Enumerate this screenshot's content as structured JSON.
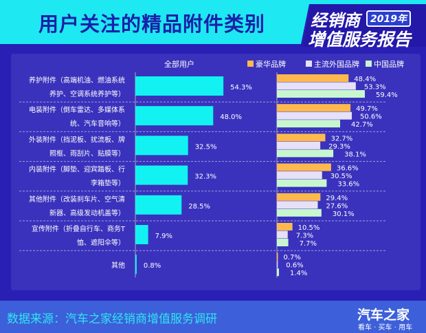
{
  "header": {
    "title": "用户关注的精品附件类别",
    "badge_line1": "经销商",
    "badge_year": "2019年",
    "badge_line2": "增值服务报告"
  },
  "footer": {
    "source": "数据来源：汽车之家经销商增值服务调研",
    "logo": "汽车之家",
    "logo_tagline": "看车 · 买车 · 用车"
  },
  "colors": {
    "all_users": "#12f2f2",
    "luxury": "#ffb84d",
    "foreign": "#e6e0f8",
    "chinese": "#c8f7cf",
    "background": "#2a1fb4",
    "header": "#1ee8f2"
  },
  "chart_data": {
    "type": "bar",
    "orientation": "horizontal",
    "categories": [
      [
        "养护附件（高端机油、燃油系统",
        "养护、空调系统养护等）"
      ],
      [
        "电装附件（倒车雷达、多媒体系",
        "统、汽车音响等）"
      ],
      [
        "外装附件（挡泥板、扰流板、牌",
        "照框、雨刮片、贴膜等）"
      ],
      [
        "内装附件（脚垫、迎宾踏板、行",
        "李箱垫等）"
      ],
      [
        "其他附件（改装刹车片、空气清",
        "新器、高级发动机盖等）"
      ],
      [
        "宣传附件（折叠自行车、商务T",
        "恤、遮阳伞等）"
      ],
      [
        "其他"
      ]
    ],
    "panels": [
      {
        "title": "全部用户",
        "series": [
          {
            "name": "全部用户",
            "values": [
              54.3,
              48.0,
              32.5,
              32.3,
              28.5,
              7.9,
              0.8
            ],
            "labels": [
              "54.3%",
              "48.0%",
              "32.5%",
              "32.3%",
              "28.5%",
              "7.9%",
              "0.8%"
            ]
          }
        ]
      },
      {
        "title": "",
        "legend_position": "top-right",
        "series": [
          {
            "name": "豪华品牌",
            "values": [
              48.4,
              49.7,
              32.7,
              36.6,
              29.4,
              10.5,
              0.7
            ],
            "labels": [
              "48.4%",
              "49.7%",
              "32.7%",
              "36.6%",
              "29.4%",
              "10.5%",
              "0.7%"
            ]
          },
          {
            "name": "主流外国品牌",
            "values": [
              53.3,
              50.6,
              29.3,
              30.5,
              27.6,
              7.3,
              0.6
            ],
            "labels": [
              "53.3%",
              "50.6%",
              "29.3%",
              "30.5%",
              "27.6%",
              "7.3%",
              "0.6%"
            ]
          },
          {
            "name": "中国品牌",
            "values": [
              59.4,
              42.7,
              38.1,
              33.6,
              30.1,
              7.7,
              1.4
            ],
            "labels": [
              "59.4%",
              "42.7%",
              "38.1%",
              "33.6%",
              "30.1%",
              "7.7%",
              "1.4%"
            ]
          }
        ]
      }
    ],
    "grid": false
  }
}
